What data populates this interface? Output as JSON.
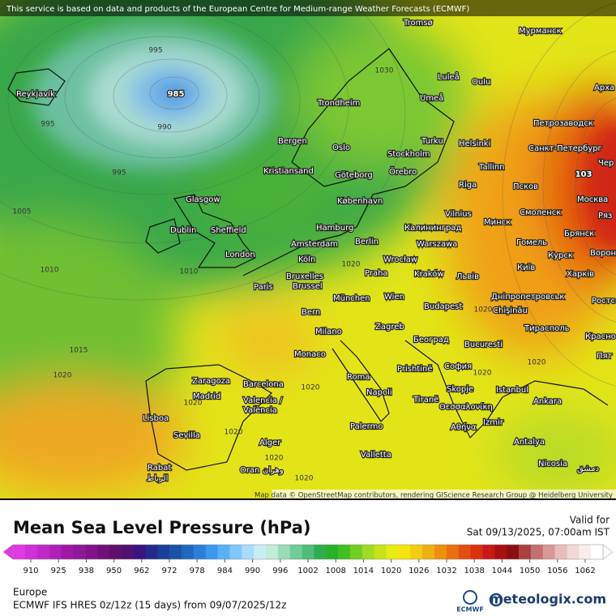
{
  "header": {
    "notice": "This service is based on data and products of the European Centre for Medium-range Weather Forecasts (ECMWF)"
  },
  "map": {
    "attribution": "Map data © OpenStreetMap contributors, rendering GIScience Research Group @ Heidelberg University",
    "cities": [
      "Reykjavík",
      "Tromsø",
      "Мурманск",
      "Luleå",
      "Oulu",
      "Арха",
      "Umeå",
      "Trondheim",
      "Петрозаводск",
      "Bergen",
      "Oslo",
      "Turku",
      "Helsinki",
      "Санкт-Петербург",
      "Stockholm",
      "Kristiansand",
      "Göteborg",
      "Örebro",
      "Tallinn",
      "Чер",
      "Glasgow",
      "København",
      "Riga",
      "Псков",
      "Москва",
      "Vilnius",
      "Смоленск",
      "Ряз",
      "Dublin",
      "Sheffield",
      "Hamburg",
      "Калининград",
      "Минск",
      "Брянск",
      "Amsterdam",
      "Berlin",
      "Warszawa",
      "Гомель",
      "London",
      "Köln",
      "Wrocław",
      "Курск",
      "Вороне",
      "Bruxelles",
      "Brussel",
      "Praha",
      "Kraków",
      "Київ",
      "Харків",
      "Paris",
      "Львів",
      "München",
      "Wien",
      "Дніпропетровськ",
      "Ростс",
      "Bern",
      "Budapest",
      "Chişinău",
      "Milano",
      "Zagreb",
      "Тирасполь",
      "Красно",
      "Београд",
      "Monaco",
      "Bucuresti",
      "Пят",
      "Prishtinë",
      "София",
      "Zaragoza",
      "Barcelona",
      "Roma",
      "Istanbul",
      "Madrid",
      "Napoli",
      "Skopje",
      "Tiranë",
      "Ankara",
      "Valencia /",
      "València",
      "Lisboa",
      "Θεσσαλονίκη",
      "Izmir",
      "Αθήνα",
      "Palermo",
      "Sevilla",
      "Alger",
      "Antalya",
      "Valletta",
      "Rabat",
      "الرباط",
      "Oran",
      "وهران",
      "Nicosia",
      "دمشق"
    ],
    "isobar_labels": [
      "985",
      "995",
      "990",
      "995",
      "995",
      "1005",
      "1010",
      "1010",
      "1015",
      "1020",
      "1020",
      "1020",
      "1020",
      "1020",
      "1020",
      "1020",
      "1030",
      "103",
      "1020",
      "1020",
      "1020"
    ]
  },
  "legend": {
    "title": "Mean Sea Level Pressure (hPa)",
    "valid_label": "Valid for",
    "valid_time": "Sat 09/13/2025, 07:00am IST",
    "ticks": [
      910,
      925,
      938,
      950,
      962,
      972,
      978,
      984,
      990,
      996,
      1002,
      1008,
      1014,
      1020,
      1026,
      1032,
      1038,
      1044,
      1050,
      1056,
      1062
    ],
    "colors": [
      "#e238e6",
      "#d030d8",
      "#c028c8",
      "#b020b8",
      "#a018a8",
      "#901898",
      "#801488",
      "#701078",
      "#60106c",
      "#501070",
      "#3a1480",
      "#242a8c",
      "#1a3e9a",
      "#1a52aa",
      "#2068be",
      "#2a80d8",
      "#3a98ee",
      "#5ab0f8",
      "#80c6fa",
      "#a8dcfa",
      "#c8ecf8",
      "#c0ecd8",
      "#98dcb8",
      "#70cc98",
      "#50bc78",
      "#30ac50",
      "#28b028",
      "#40c020",
      "#70d020",
      "#a0dc20",
      "#c8e418",
      "#e8ec10",
      "#f4e410",
      "#f4cc10",
      "#f0b010",
      "#ec9010",
      "#e87010",
      "#e05010",
      "#d83010",
      "#c81818",
      "#a81010",
      "#881010",
      "#a84040",
      "#c07070",
      "#d89898",
      "#eabcbc",
      "#f2d8d8",
      "#f8ecec",
      "#ffffff"
    ],
    "region": "Europe",
    "model": "ECMWF IFS HRES 0z/12z (15 days) from  09/07/2025/12z",
    "logo": "ECMWF",
    "brand": "meteologix.com"
  }
}
